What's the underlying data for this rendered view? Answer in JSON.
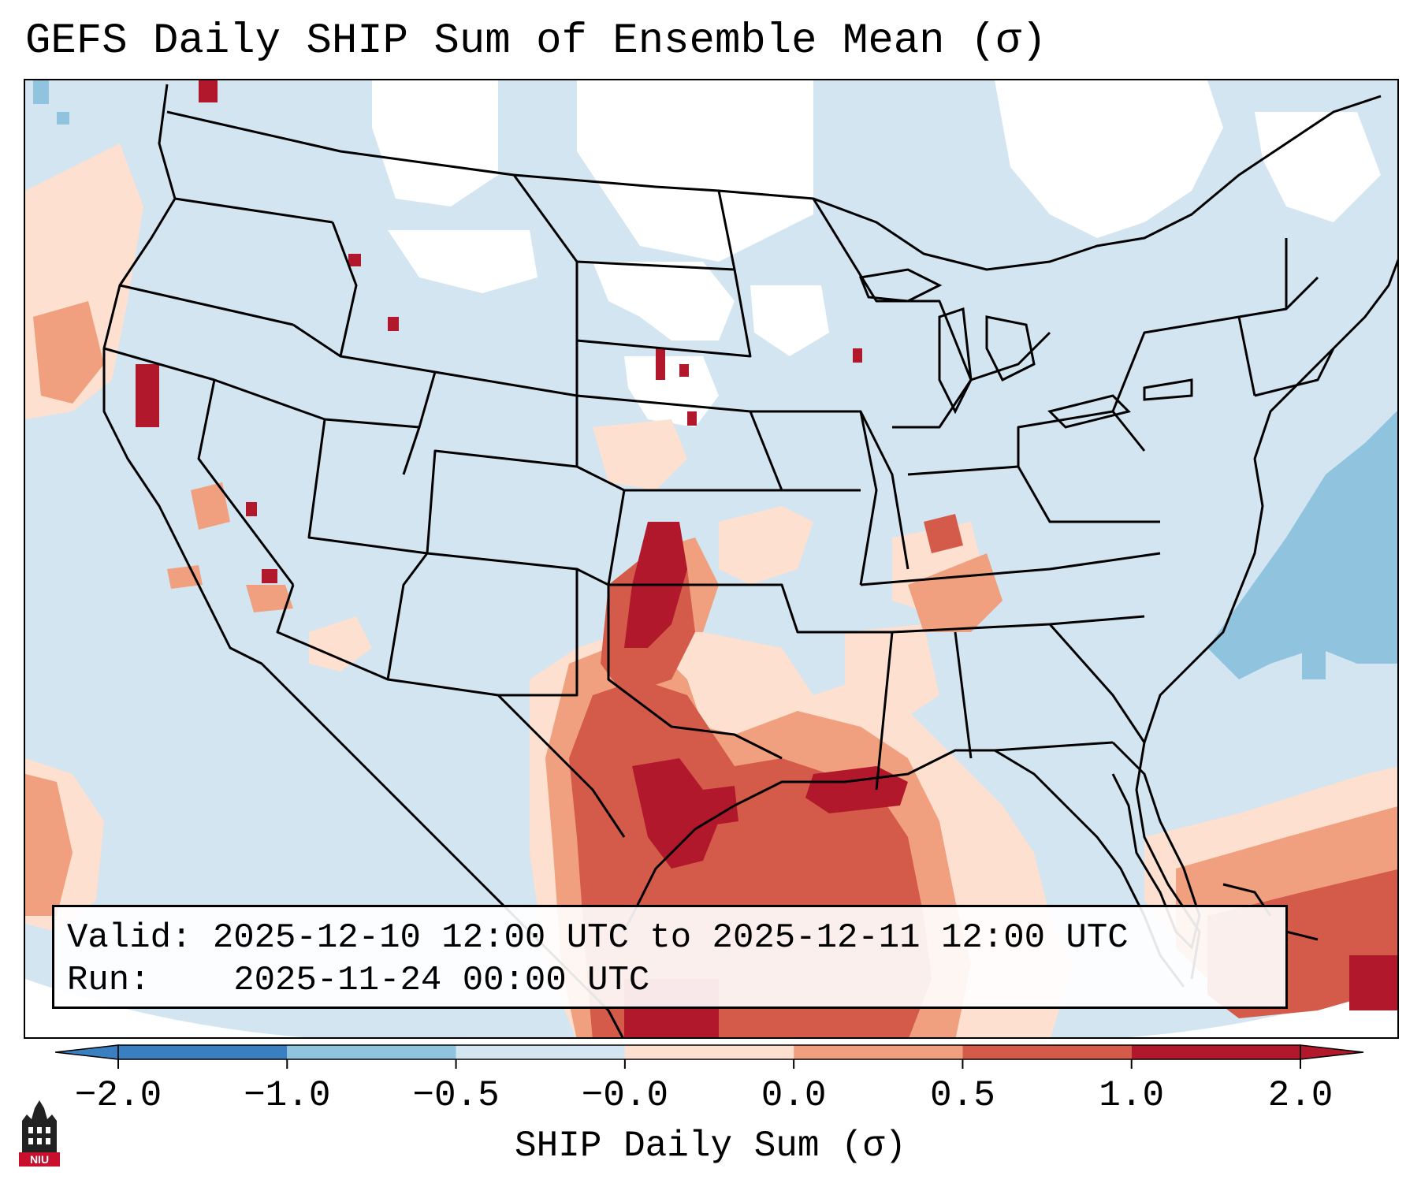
{
  "title": "GEFS Daily SHIP Sum of Ensemble Mean (σ)",
  "info": {
    "valid_label": "Valid:",
    "valid_value": "2025-12-10 12:00 UTC to 2025-12-11 12:00 UTC",
    "run_label": "Run:",
    "run_value": "2025-11-24 00:00 UTC"
  },
  "colorbar": {
    "label": "SHIP Daily Sum (σ)",
    "ticks": [
      "−2.0",
      "−1.0",
      "−0.5",
      "−0.0",
      "0.0",
      "0.5",
      "1.0",
      "2.0"
    ],
    "colors": [
      "#3a7fbf",
      "#8fc3de",
      "#d2e5f1",
      "#ffffff",
      "#fde0cf",
      "#f0a07e",
      "#d45a4a",
      "#b2182b"
    ],
    "extend": "both"
  },
  "map": {
    "region": "Contiguous United States",
    "base_color": "#d2e5f1",
    "features": [
      "state-borders",
      "coastlines",
      "country-borders"
    ]
  },
  "logo": {
    "text": "NIU",
    "icon": "niu-tower-logo-icon"
  }
}
